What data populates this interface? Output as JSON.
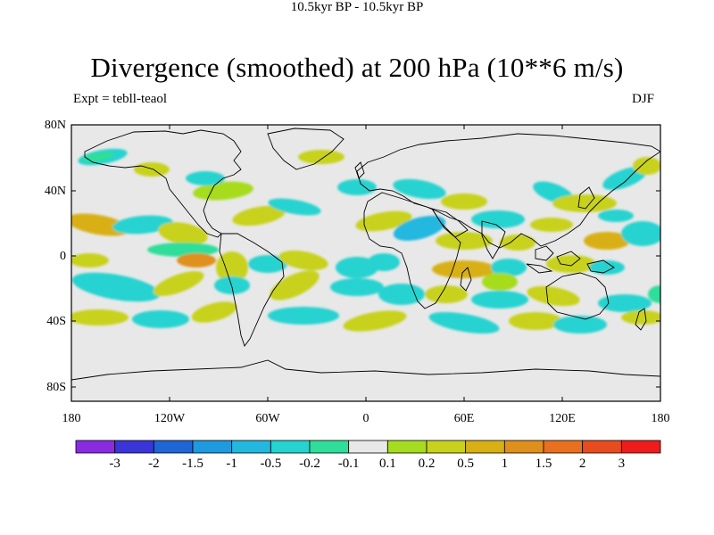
{
  "title": "Divergence (smoothed) at 200 hPa (10**6 m/s)",
  "subtitle_left": "Expt = tebll-teaol",
  "subtitle_center": "10.5kyr BP - 10.5kyr BP",
  "subtitle_right": "DJF",
  "lat_labels": [
    "80N",
    "40N",
    "0",
    "40S",
    "80S"
  ],
  "lon_labels": [
    "180",
    "120W",
    "60W",
    "0",
    "60E",
    "120E",
    "180"
  ],
  "colorbar": {
    "labels": [
      "-3",
      "-2",
      "-1.5",
      "-1",
      "-0.5",
      "-0.2",
      "-0.1",
      "0.1",
      "0.2",
      "0.5",
      "1",
      "1.5",
      "2",
      "3"
    ],
    "colors": [
      "#8a2be2",
      "#3a35d9",
      "#1e66d6",
      "#1e9ae0",
      "#22b8e0",
      "#25d3d0",
      "#2ede9a",
      "#e8e8e8",
      "#a6dc1e",
      "#c8d21a",
      "#d8b014",
      "#e0901a",
      "#e8701e",
      "#e84c1e",
      "#ee1c1c"
    ]
  },
  "map_colors": {
    "background": "#e8e8e8",
    "coast": "#000000",
    "neg_strong": "#22b8e0",
    "neg_mid": "#25d3d0",
    "neg_weak": "#2ede9a",
    "pos_weak": "#a6dc1e",
    "pos_mid": "#c8d21a",
    "pos_strong": "#d8b014",
    "pos_hot": "#e0901a"
  }
}
